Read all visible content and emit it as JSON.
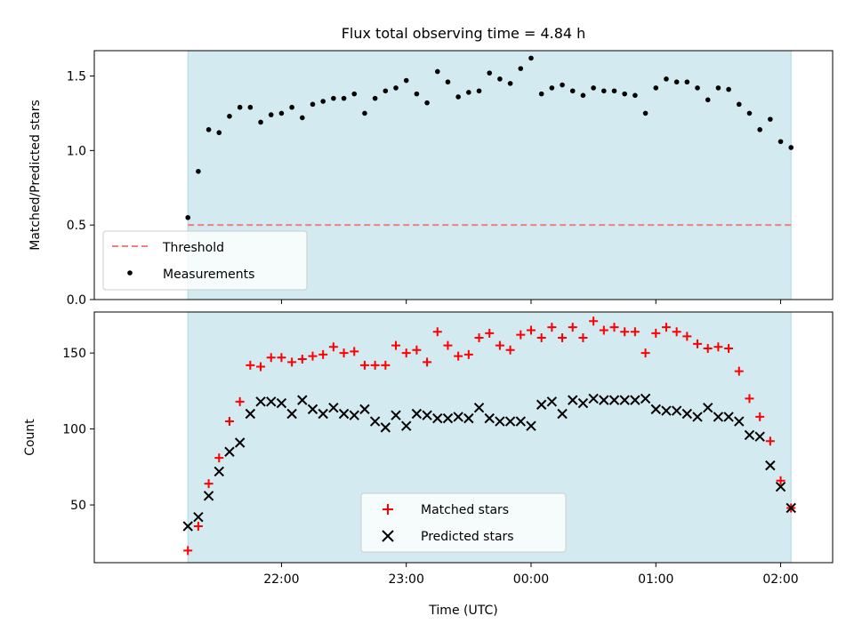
{
  "chart_data": [
    {
      "type": "scatter",
      "title": "Flux total observing time = 4.84 h",
      "ylabel": "Matched/Predicted stars",
      "xlabel": "",
      "ylim": [
        0,
        1.67
      ],
      "yticks": [
        0.0,
        0.5,
        1.0,
        1.5
      ],
      "ytick_labels": [
        "0.0",
        "0.5",
        "1.0",
        "1.5"
      ],
      "observing_window": [
        "21:15",
        "02:05"
      ],
      "threshold": {
        "name": "Threshold",
        "value": 0.5,
        "color": "#f08080"
      },
      "series": [
        {
          "name": "Measurements",
          "color": "#000000",
          "x": [
            "21:15",
            "21:20",
            "21:25",
            "21:30",
            "21:35",
            "21:40",
            "21:45",
            "21:50",
            "21:55",
            "22:00",
            "22:05",
            "22:10",
            "22:15",
            "22:20",
            "22:25",
            "22:30",
            "22:35",
            "22:40",
            "22:45",
            "22:50",
            "22:55",
            "23:00",
            "23:05",
            "23:10",
            "23:15",
            "23:20",
            "23:25",
            "23:30",
            "23:35",
            "23:40",
            "23:45",
            "23:50",
            "23:55",
            "00:00",
            "00:05",
            "00:10",
            "00:15",
            "00:20",
            "00:25",
            "00:30",
            "00:35",
            "00:40",
            "00:45",
            "00:50",
            "00:55",
            "01:00",
            "01:05",
            "01:10",
            "01:15",
            "01:20",
            "01:25",
            "01:30",
            "01:35",
            "01:40",
            "01:45",
            "01:50",
            "01:55",
            "02:00",
            "02:05"
          ],
          "y": [
            0.55,
            0.86,
            1.14,
            1.12,
            1.23,
            1.29,
            1.29,
            1.19,
            1.24,
            1.25,
            1.29,
            1.22,
            1.31,
            1.33,
            1.35,
            1.35,
            1.38,
            1.25,
            1.35,
            1.4,
            1.42,
            1.47,
            1.38,
            1.32,
            1.53,
            1.46,
            1.36,
            1.39,
            1.4,
            1.52,
            1.48,
            1.45,
            1.55,
            1.62,
            1.38,
            1.42,
            1.44,
            1.4,
            1.37,
            1.42,
            1.4,
            1.4,
            1.38,
            1.37,
            1.25,
            1.42,
            1.48,
            1.46,
            1.46,
            1.42,
            1.34,
            1.42,
            1.41,
            1.31,
            1.25,
            1.14,
            1.21,
            1.06,
            1.02
          ]
        }
      ]
    },
    {
      "type": "scatter",
      "title": "",
      "ylabel": "Count",
      "xlabel": "Time (UTC)",
      "ylim": [
        12,
        177
      ],
      "yticks": [
        50,
        100,
        150
      ],
      "ytick_labels": [
        "50",
        "100",
        "150"
      ],
      "xticks": [
        "22:00",
        "23:00",
        "00:00",
        "01:00",
        "02:00"
      ],
      "observing_window": [
        "21:15",
        "02:05"
      ],
      "series": [
        {
          "name": "Matched stars",
          "marker": "+",
          "color": "#ff0000",
          "x": [
            "21:15",
            "21:20",
            "21:25",
            "21:30",
            "21:35",
            "21:40",
            "21:45",
            "21:50",
            "21:55",
            "22:00",
            "22:05",
            "22:10",
            "22:15",
            "22:20",
            "22:25",
            "22:30",
            "22:35",
            "22:40",
            "22:45",
            "22:50",
            "22:55",
            "23:00",
            "23:05",
            "23:10",
            "23:15",
            "23:20",
            "23:25",
            "23:30",
            "23:35",
            "23:40",
            "23:45",
            "23:50",
            "23:55",
            "00:00",
            "00:05",
            "00:10",
            "00:15",
            "00:20",
            "00:25",
            "00:30",
            "00:35",
            "00:40",
            "00:45",
            "00:50",
            "00:55",
            "01:00",
            "01:05",
            "01:10",
            "01:15",
            "01:20",
            "01:25",
            "01:30",
            "01:35",
            "01:40",
            "01:45",
            "01:50",
            "01:55",
            "02:00",
            "02:05"
          ],
          "y": [
            20,
            36,
            64,
            81,
            105,
            118,
            142,
            141,
            147,
            147,
            144,
            146,
            148,
            149,
            154,
            150,
            151,
            142,
            142,
            142,
            155,
            150,
            152,
            144,
            164,
            155,
            148,
            149,
            160,
            163,
            155,
            152,
            162,
            165,
            160,
            167,
            160,
            167,
            160,
            171,
            165,
            167,
            164,
            164,
            150,
            163,
            167,
            164,
            161,
            156,
            153,
            154,
            153,
            138,
            120,
            108,
            92,
            66,
            48
          ]
        },
        {
          "name": "Predicted stars",
          "marker": "x",
          "color": "#000000",
          "x": [
            "21:15",
            "21:20",
            "21:25",
            "21:30",
            "21:35",
            "21:40",
            "21:45",
            "21:50",
            "21:55",
            "22:00",
            "22:05",
            "22:10",
            "22:15",
            "22:20",
            "22:25",
            "22:30",
            "22:35",
            "22:40",
            "22:45",
            "22:50",
            "22:55",
            "23:00",
            "23:05",
            "23:10",
            "23:15",
            "23:20",
            "23:25",
            "23:30",
            "23:35",
            "23:40",
            "23:45",
            "23:50",
            "23:55",
            "00:00",
            "00:05",
            "00:10",
            "00:15",
            "00:20",
            "00:25",
            "00:30",
            "00:35",
            "00:40",
            "00:45",
            "00:50",
            "00:55",
            "01:00",
            "01:05",
            "01:10",
            "01:15",
            "01:20",
            "01:25",
            "01:30",
            "01:35",
            "01:40",
            "01:45",
            "01:50",
            "01:55",
            "02:00",
            "02:05"
          ],
          "y": [
            36,
            42,
            56,
            72,
            85,
            91,
            110,
            118,
            118,
            117,
            110,
            119,
            113,
            110,
            114,
            110,
            109,
            113,
            105,
            101,
            109,
            102,
            110,
            109,
            107,
            107,
            108,
            107,
            114,
            107,
            105,
            105,
            105,
            102,
            116,
            118,
            110,
            119,
            117,
            120,
            119,
            119,
            119,
            119,
            120,
            113,
            112,
            112,
            110,
            108,
            114,
            108,
            108,
            105,
            96,
            95,
            76,
            62,
            48
          ]
        }
      ]
    }
  ],
  "colors": {
    "window_fill": "#d3eaf0",
    "window_edge": "#add8e6"
  }
}
